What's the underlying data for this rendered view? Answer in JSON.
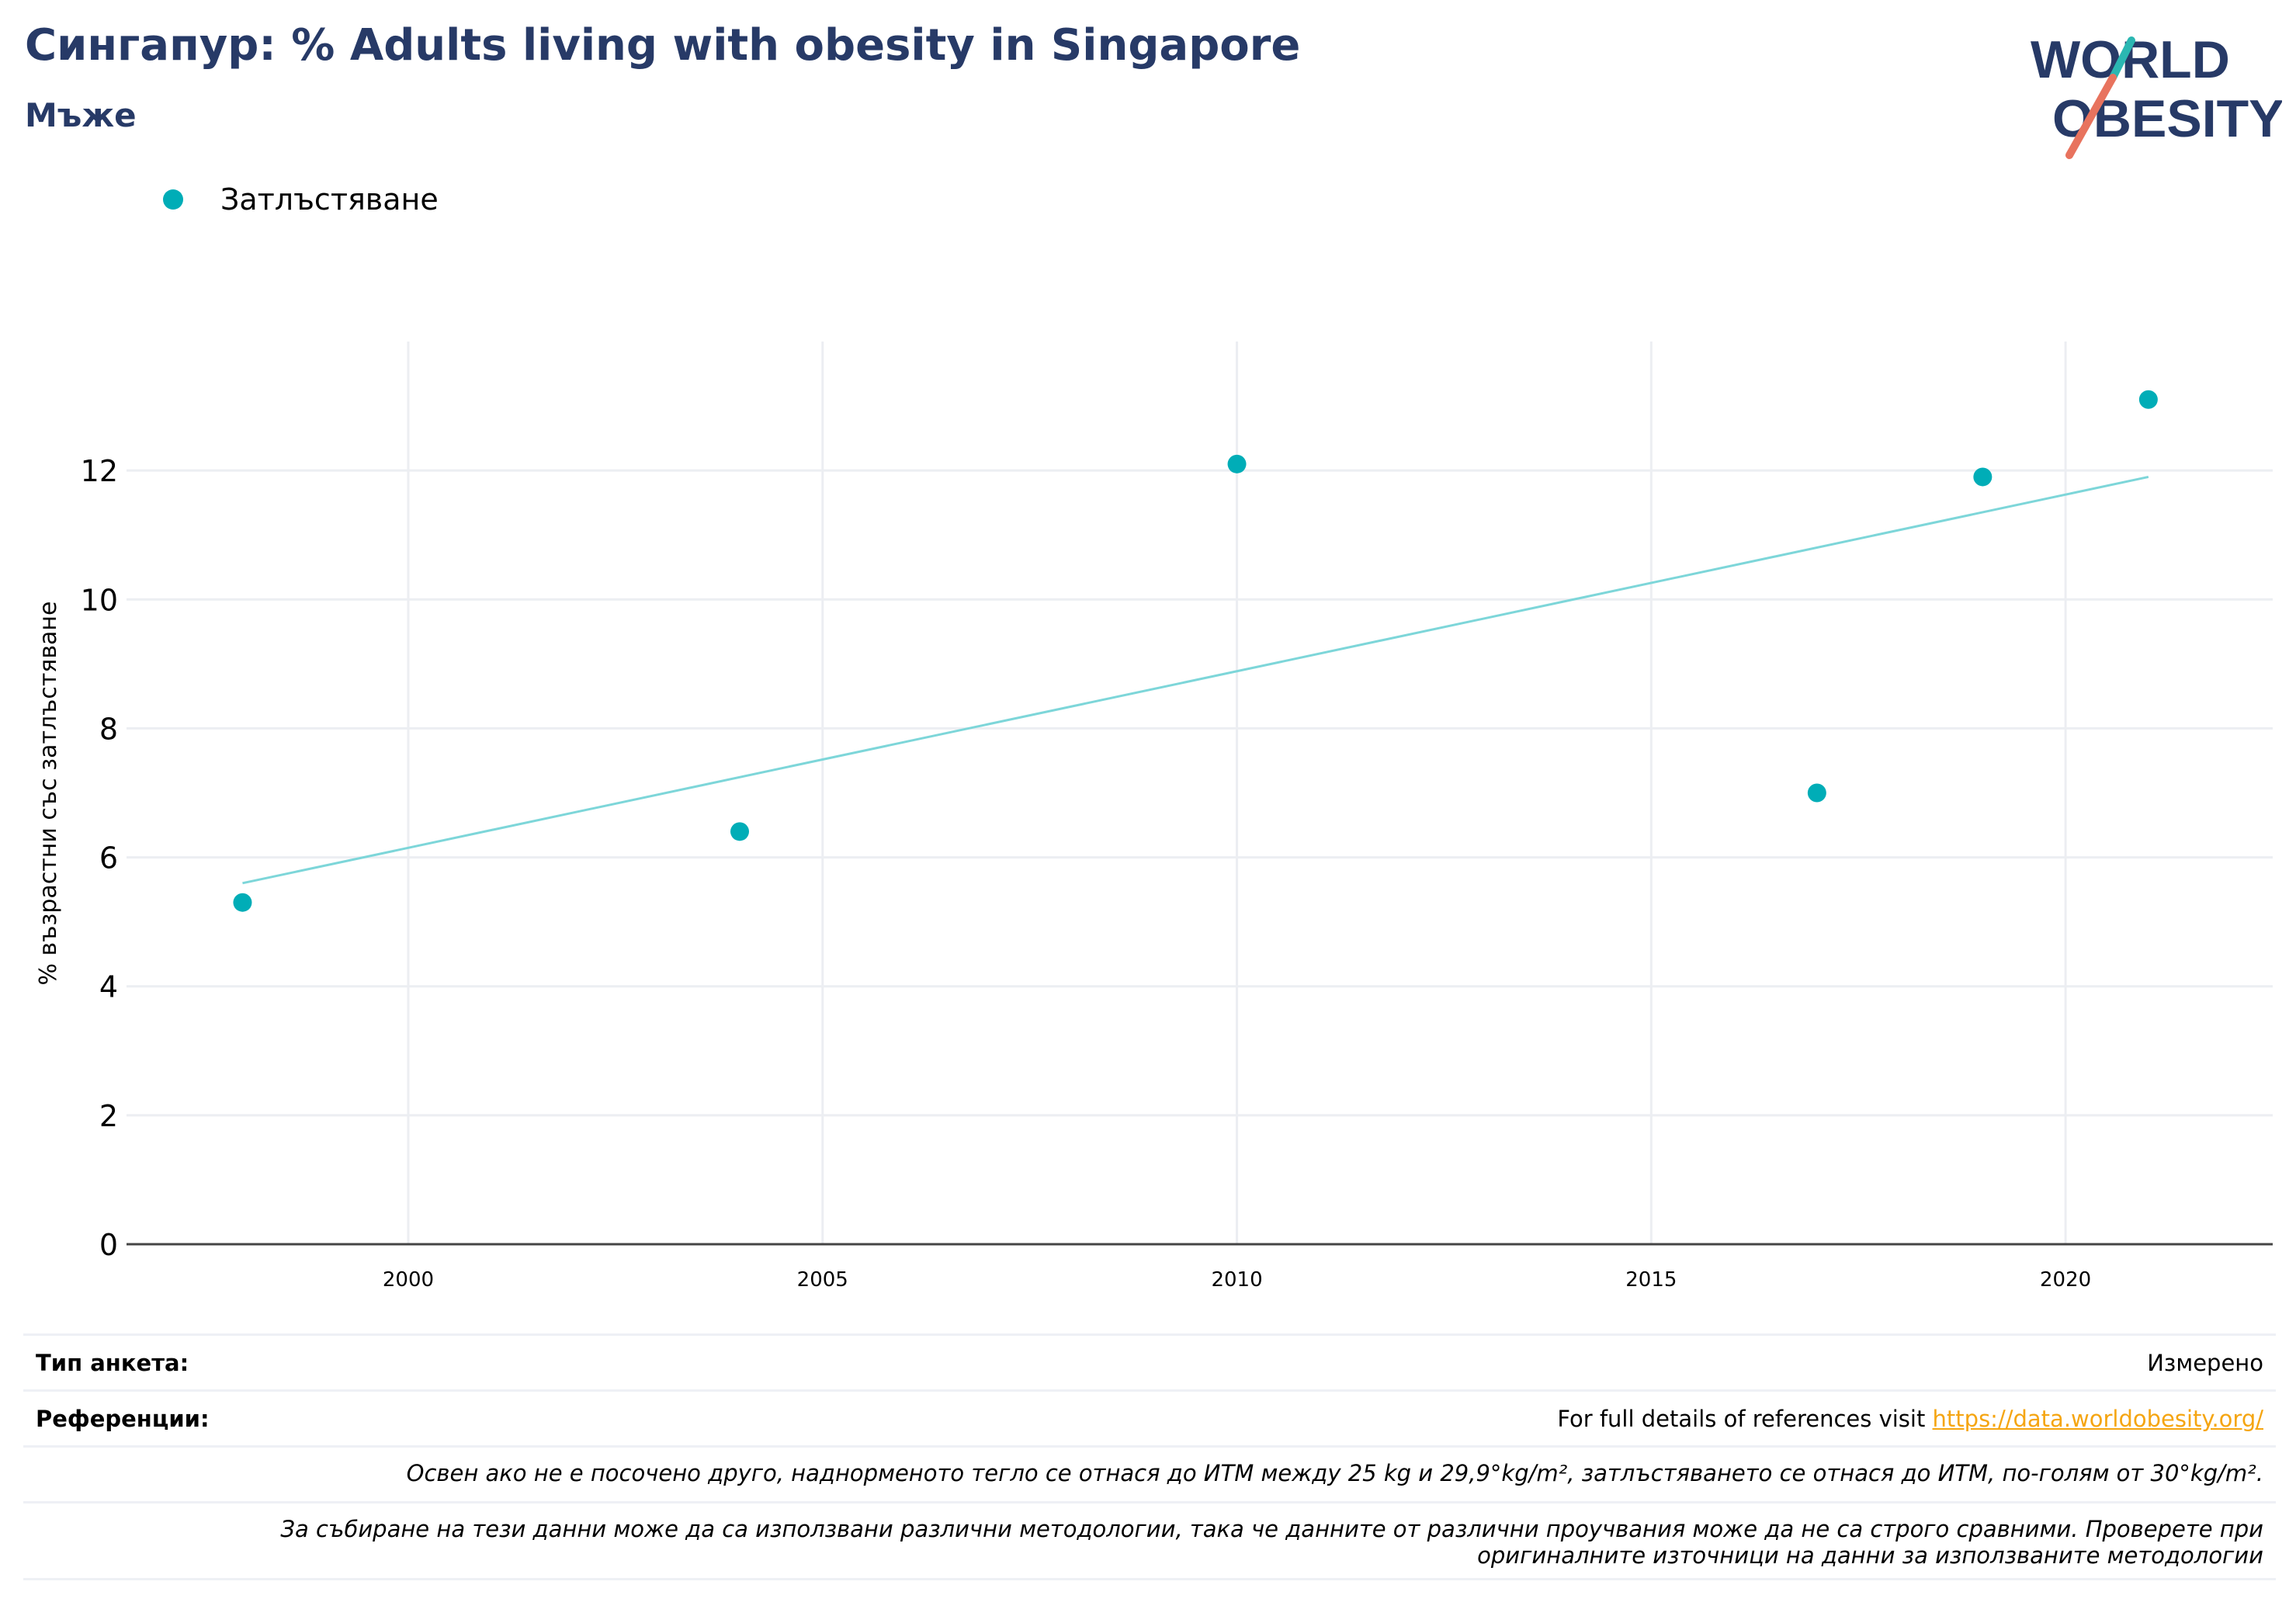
{
  "header": {
    "title": "Сингапур: % Adults living with obesity in Singapore",
    "subtitle": "Мъже"
  },
  "logo": {
    "line1": "WORLD",
    "line2": "OBESITY",
    "text_color": "#273a67",
    "slash_teal": "#2bb7b2",
    "slash_coral": "#e8735e"
  },
  "legend": {
    "label": "Затлъстяване",
    "color": "#00adb7"
  },
  "chart_data": {
    "type": "scatter",
    "ylabel": "% възрастни със затлъстяване",
    "xlabel": "",
    "xlim": [
      1996.6,
      2022.5
    ],
    "ylim": [
      0,
      14
    ],
    "x_ticks": [
      2000,
      2005,
      2010,
      2015,
      2020
    ],
    "y_ticks": [
      0,
      2,
      4,
      6,
      8,
      10,
      12
    ],
    "grid": true,
    "legend_position": "top-left",
    "series": [
      {
        "name": "Затлъстяване",
        "color": "#00adb7",
        "points": [
          {
            "x": 1998,
            "y": 5.3
          },
          {
            "x": 2004,
            "y": 6.4
          },
          {
            "x": 2010,
            "y": 12.1
          },
          {
            "x": 2017,
            "y": 7.0
          },
          {
            "x": 2019,
            "y": 11.9
          },
          {
            "x": 2021,
            "y": 13.1
          }
        ]
      }
    ],
    "trendline": {
      "color": "#7dd6d9",
      "points": [
        {
          "x": 1998,
          "y": 5.6
        },
        {
          "x": 2021,
          "y": 11.9
        }
      ]
    }
  },
  "footer": {
    "survey_type_label": "Тип анкета:",
    "survey_type_value": "Измерено",
    "references_label": "Референции:",
    "references_text": "For full details of references visit",
    "references_link": "https://data.worldobesity.org/",
    "note_bmi": "Освен ако не е посочено друго, наднорменото тегло се отнася до ИТМ между 25 kg и 29,9°kg/m², затлъстяването се отнася до ИТМ, по-голям от 30°kg/m².",
    "note_methods_line1": "За събиране на тези данни може да са използвани различни методологии, така че данните от различни проучвания може да не са строго сравними. Проверете при",
    "note_methods_line2": "оригиналните източници на данни за използваните методологии"
  }
}
